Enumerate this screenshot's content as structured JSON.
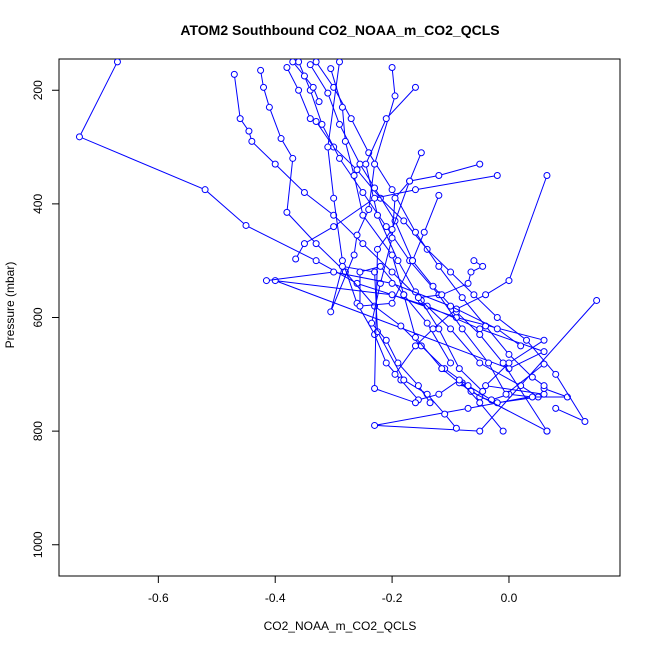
{
  "chart_data": {
    "type": "line",
    "title": "ATOM2 Southbound CO2_NOAA_m_CO2_QCLS",
    "xlabel": "CO2_NOAA_m_CO2_QCLS",
    "ylabel": "Pressure (mbar)",
    "xlim": [
      -0.77,
      0.19
    ],
    "ylim": [
      1055,
      145
    ],
    "y_reversed": true,
    "grid": false,
    "x_ticks": [
      -0.6,
      -0.4,
      -0.2,
      0.0
    ],
    "x_tick_labels": [
      "-0.6",
      "-0.4",
      "-0.2",
      "0.0"
    ],
    "y_ticks": [
      200,
      400,
      600,
      800,
      1000
    ],
    "y_tick_labels": [
      "200",
      "400",
      "600",
      "800",
      "1000"
    ],
    "series_color": "#0000ff",
    "series": [
      {
        "x": [
          -0.67,
          -0.735,
          -0.52,
          -0.45,
          -0.33,
          -0.26,
          -0.14,
          -0.05,
          0.06,
          0.0,
          -0.4,
          -0.2,
          -0.09,
          0.06,
          0.0,
          -0.04,
          0.06,
          -0.07,
          -0.23,
          -0.05,
          0.15
        ],
        "y": [
          150,
          282,
          375,
          438,
          500,
          540,
          580,
          620,
          660,
          690,
          535,
          560,
          600,
          640,
          680,
          720,
          735,
          760,
          790,
          800,
          570
        ]
      },
      {
        "x": [
          -0.47,
          -0.46,
          -0.445,
          -0.44,
          -0.4,
          -0.35,
          -0.3,
          -0.25,
          -0.2,
          -0.15,
          -0.1,
          -0.05,
          0.02,
          0.05,
          -0.02,
          -0.05,
          -0.08
        ],
        "y": [
          172,
          250,
          272,
          290,
          330,
          380,
          420,
          470,
          520,
          570,
          620,
          680,
          720,
          740,
          750,
          740,
          715
        ]
      },
      {
        "x": [
          -0.425,
          -0.42,
          -0.41,
          -0.39,
          -0.37,
          -0.38,
          -0.33,
          -0.28,
          -0.23,
          -0.185,
          -0.15,
          -0.11,
          -0.07,
          -0.03,
          0.0,
          0.04,
          0.1,
          0.06
        ],
        "y": [
          165,
          195,
          230,
          285,
          320,
          415,
          470,
          520,
          580,
          615,
          650,
          690,
          720,
          745,
          735,
          740,
          740,
          725
        ]
      },
      {
        "x": [
          -0.38,
          -0.36,
          -0.34,
          -0.33,
          -0.3,
          -0.26,
          -0.22,
          -0.18,
          -0.14,
          -0.1,
          -0.06,
          -0.02,
          0.03,
          0.08,
          0.13,
          0.08
        ],
        "y": [
          160,
          200,
          250,
          255,
          300,
          340,
          390,
          430,
          480,
          520,
          560,
          600,
          640,
          700,
          783,
          760
        ]
      },
      {
        "x": [
          -0.36,
          -0.34,
          -0.32,
          -0.29,
          -0.25,
          -0.21,
          -0.17,
          -0.12,
          -0.08,
          -0.035,
          -0.005,
          0.06
        ],
        "y": [
          150,
          200,
          260,
          320,
          380,
          440,
          500,
          560,
          620,
          680,
          735,
          682
        ]
      },
      {
        "x": [
          -0.34,
          -0.31,
          -0.29,
          -0.255,
          -0.23,
          -0.195,
          -0.165,
          -0.13,
          -0.09,
          -0.05,
          -0.01,
          0.065
        ],
        "y": [
          155,
          205,
          260,
          330,
          372,
          430,
          500,
          545,
          590,
          630,
          680,
          800
        ]
      },
      {
        "x": [
          -0.33,
          -0.3,
          -0.27,
          -0.24,
          -0.2,
          -0.16,
          -0.12,
          -0.08,
          -0.04,
          0.0,
          0.04,
          0.06
        ],
        "y": [
          150,
          195,
          250,
          310,
          375,
          450,
          510,
          565,
          615,
          665,
          705,
          720
        ]
      },
      {
        "x": [
          -0.305,
          -0.285,
          -0.28,
          -0.265,
          -0.25,
          -0.2,
          -0.18,
          -0.16,
          -0.115,
          -0.085,
          -0.065,
          0.065
        ],
        "y": [
          162,
          230,
          290,
          350,
          420,
          490,
          560,
          635,
          690,
          715,
          730,
          800
        ]
      },
      {
        "x": [
          -0.29,
          -0.31,
          -0.3,
          -0.285,
          -0.26,
          -0.23,
          -0.21,
          -0.185,
          -0.155,
          -0.12,
          -0.085,
          -0.05,
          -0.01
        ],
        "y": [
          150,
          300,
          390,
          500,
          575,
          630,
          680,
          710,
          745,
          735,
          710,
          750,
          800
        ]
      },
      {
        "x": [
          -0.2,
          -0.195,
          -0.23,
          -0.24,
          -0.26,
          -0.265,
          -0.305,
          -0.285,
          -0.23,
          -0.225,
          -0.18,
          -0.14,
          -0.11,
          -0.09
        ],
        "y": [
          160,
          210,
          330,
          410,
          455,
          490,
          590,
          510,
          520,
          625,
          710,
          735,
          770,
          795
        ]
      },
      {
        "x": [
          -0.16,
          -0.21,
          -0.245,
          -0.225,
          -0.19,
          -0.16,
          -0.12,
          -0.085,
          -0.045
        ],
        "y": [
          195,
          250,
          330,
          420,
          500,
          555,
          620,
          690,
          730
        ]
      },
      {
        "x": [
          -0.15,
          -0.17,
          -0.195,
          -0.2,
          -0.22,
          -0.235,
          -0.21,
          -0.19,
          -0.155,
          -0.135
        ],
        "y": [
          310,
          360,
          390,
          460,
          540,
          610,
          640,
          680,
          720,
          750
        ]
      },
      {
        "x": [
          -0.12,
          -0.145,
          -0.165,
          -0.2,
          -0.255,
          -0.255,
          -0.22,
          -0.18,
          -0.14,
          -0.1
        ],
        "y": [
          385,
          450,
          500,
          575,
          580,
          520,
          510,
          560,
          610,
          680
        ]
      },
      {
        "x": [
          -0.05,
          -0.12,
          -0.17,
          -0.2,
          -0.225,
          -0.23,
          -0.16
        ],
        "y": [
          330,
          350,
          360,
          445,
          480,
          725,
          750
        ]
      },
      {
        "x": [
          -0.02,
          -0.16,
          -0.23,
          -0.3,
          -0.35,
          -0.365
        ],
        "y": [
          350,
          375,
          390,
          440,
          470,
          497
        ]
      },
      {
        "x": [
          0.065,
          0.0,
          -0.04,
          -0.09,
          -0.13,
          -0.16,
          -0.195
        ],
        "y": [
          350,
          535,
          560,
          585,
          620,
          650,
          700
        ]
      },
      {
        "x": [
          -0.06,
          -0.045,
          -0.065,
          -0.07,
          -0.115,
          -0.155
        ],
        "y": [
          500,
          510,
          520,
          540,
          560,
          565
        ]
      },
      {
        "x": [
          -0.415,
          -0.3,
          -0.2,
          -0.1,
          -0.02,
          0.02
        ],
        "y": [
          535,
          520,
          540,
          580,
          620,
          650
        ]
      },
      {
        "x": [
          -0.37,
          -0.35,
          -0.335,
          -0.325
        ],
        "y": [
          150,
          175,
          195,
          220
        ]
      }
    ]
  }
}
